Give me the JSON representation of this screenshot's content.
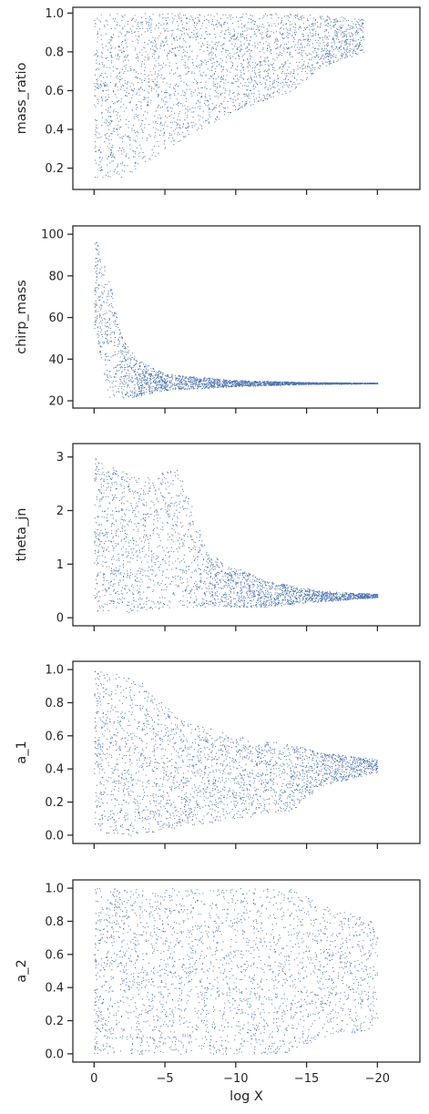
{
  "chart_data": [
    {
      "type": "scatter",
      "title": "",
      "xlabel": "",
      "ylabel": "mass_ratio",
      "xlim": [
        1.5,
        -23
      ],
      "ylim": [
        0.09,
        1.03
      ],
      "yticks": [
        "0.2",
        "0.4",
        "0.6",
        "0.8",
        "1.0"
      ],
      "ytick_values": [
        0.2,
        0.4,
        0.6,
        0.8,
        1.0
      ],
      "xticks_visible": false,
      "marker_color": "#4c72b0",
      "grid": false,
      "density_profile": [
        {
          "x": 0,
          "y_low": 0.14,
          "y_high": 1.0
        },
        {
          "x": -2,
          "y_low": 0.14,
          "y_high": 1.0
        },
        {
          "x": -5,
          "y_low": 0.3,
          "y_high": 1.0
        },
        {
          "x": -10,
          "y_low": 0.5,
          "y_high": 1.0
        },
        {
          "x": -14,
          "y_low": 0.6,
          "y_high": 1.0
        },
        {
          "x": -16,
          "y_low": 0.72,
          "y_high": 0.99
        },
        {
          "x": -19,
          "y_low": 0.8,
          "y_high": 0.97
        }
      ]
    },
    {
      "type": "scatter",
      "title": "",
      "xlabel": "",
      "ylabel": "chirp_mass",
      "xlim": [
        1.5,
        -23
      ],
      "ylim": [
        16.5,
        104
      ],
      "yticks": [
        "20",
        "40",
        "60",
        "80",
        "100"
      ],
      "ytick_values": [
        20,
        40,
        60,
        80,
        100
      ],
      "xticks_visible": false,
      "marker_color": "#4c72b0",
      "grid": false,
      "density_profile": [
        {
          "x": 0,
          "y_low": 55,
          "y_high": 100
        },
        {
          "x": -1,
          "y_low": 22,
          "y_high": 80
        },
        {
          "x": -2,
          "y_low": 21,
          "y_high": 50
        },
        {
          "x": -3,
          "y_low": 22,
          "y_high": 40
        },
        {
          "x": -5,
          "y_low": 25,
          "y_high": 33
        },
        {
          "x": -10,
          "y_low": 27,
          "y_high": 30
        },
        {
          "x": -15,
          "y_low": 28,
          "y_high": 29
        },
        {
          "x": -20,
          "y_low": 28.3,
          "y_high": 28.7
        }
      ]
    },
    {
      "type": "scatter",
      "title": "",
      "xlabel": "",
      "ylabel": "theta_jn",
      "xlim": [
        1.5,
        -23
      ],
      "ylim": [
        -0.15,
        3.25
      ],
      "yticks": [
        "0",
        "1",
        "2",
        "3"
      ],
      "ytick_values": [
        0,
        1,
        2,
        3
      ],
      "xticks_visible": false,
      "marker_color": "#4c72b0",
      "grid": false,
      "density_profile": [
        {
          "x": 0,
          "y_low": 0.1,
          "y_high": 3.05
        },
        {
          "x": -3,
          "y_low": 0.1,
          "y_high": 2.6
        },
        {
          "x": -6,
          "y_low": 0.2,
          "y_high": 2.8
        },
        {
          "x": -8,
          "y_low": 0.2,
          "y_high": 1.2
        },
        {
          "x": -12,
          "y_low": 0.2,
          "y_high": 0.7
        },
        {
          "x": -16,
          "y_low": 0.3,
          "y_high": 0.5
        },
        {
          "x": -20,
          "y_low": 0.38,
          "y_high": 0.45
        }
      ]
    },
    {
      "type": "scatter",
      "title": "",
      "xlabel": "",
      "ylabel": "a_1",
      "xlim": [
        1.5,
        -23
      ],
      "ylim": [
        -0.05,
        1.05
      ],
      "yticks": [
        "0.0",
        "0.2",
        "0.4",
        "0.6",
        "0.8",
        "1.0"
      ],
      "ytick_values": [
        0.0,
        0.2,
        0.4,
        0.6,
        0.8,
        1.0
      ],
      "xticks_visible": false,
      "marker_color": "#4c72b0",
      "grid": false,
      "density_profile": [
        {
          "x": 0,
          "y_low": 0.0,
          "y_high": 1.0
        },
        {
          "x": -3,
          "y_low": 0.0,
          "y_high": 0.95
        },
        {
          "x": -6,
          "y_low": 0.05,
          "y_high": 0.7
        },
        {
          "x": -10,
          "y_low": 0.1,
          "y_high": 0.6
        },
        {
          "x": -14,
          "y_low": 0.15,
          "y_high": 0.55
        },
        {
          "x": -16,
          "y_low": 0.3,
          "y_high": 0.5
        },
        {
          "x": -20,
          "y_low": 0.38,
          "y_high": 0.46
        }
      ]
    },
    {
      "type": "scatter",
      "title": "",
      "xlabel": "log X",
      "ylabel": "a_2",
      "xlim": [
        1.5,
        -23
      ],
      "ylim": [
        -0.05,
        1.05
      ],
      "yticks": [
        "0.0",
        "0.2",
        "0.4",
        "0.6",
        "0.8",
        "1.0"
      ],
      "ytick_values": [
        0.0,
        0.2,
        0.4,
        0.6,
        0.8,
        1.0
      ],
      "xticks": [
        "0",
        "−5",
        "−10",
        "−15",
        "−20"
      ],
      "xtick_values": [
        0,
        -5,
        -10,
        -15,
        -20
      ],
      "xticks_visible": true,
      "marker_color": "#4c72b0",
      "grid": false,
      "density_profile": [
        {
          "x": 0,
          "y_low": 0.0,
          "y_high": 1.0
        },
        {
          "x": -5,
          "y_low": 0.0,
          "y_high": 1.0
        },
        {
          "x": -10,
          "y_low": 0.0,
          "y_high": 1.0
        },
        {
          "x": -14,
          "y_low": 0.0,
          "y_high": 1.0
        },
        {
          "x": -16,
          "y_low": 0.1,
          "y_high": 0.9
        },
        {
          "x": -20,
          "y_low": 0.15,
          "y_high": 0.8
        }
      ]
    }
  ]
}
